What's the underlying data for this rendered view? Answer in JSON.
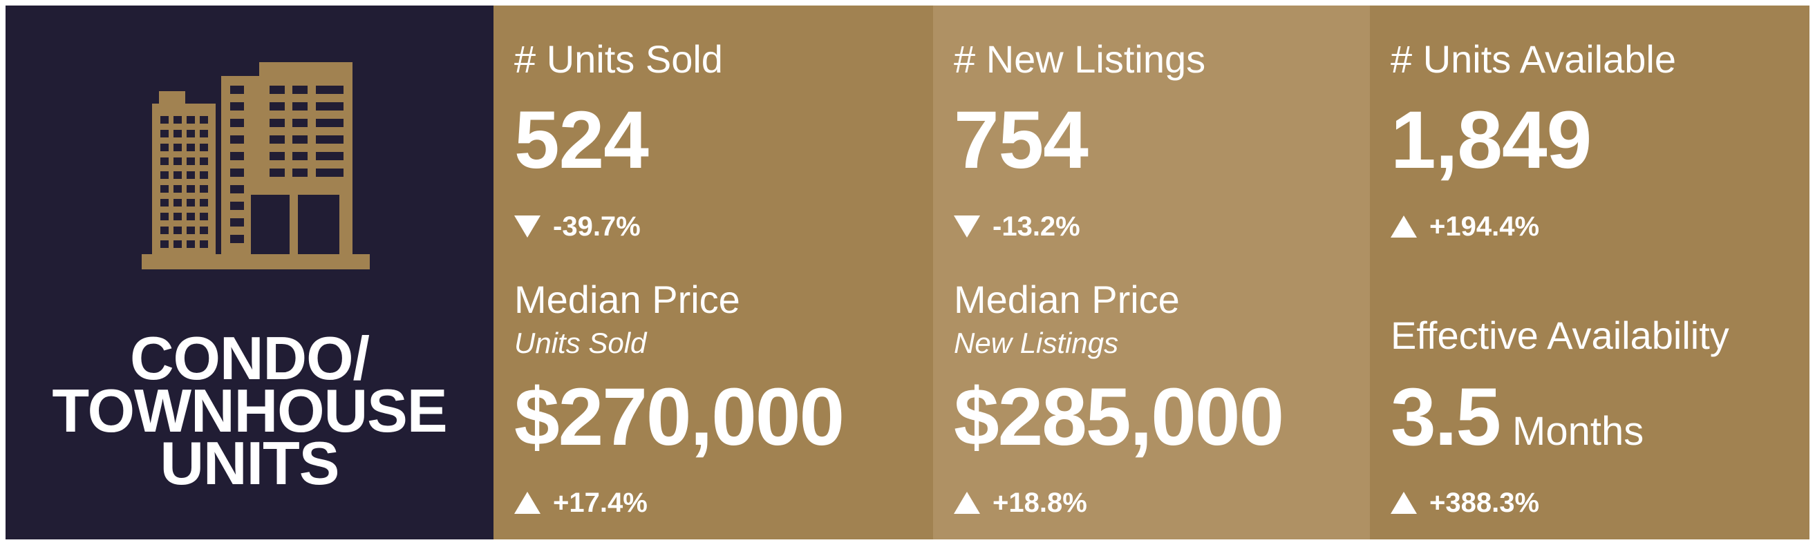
{
  "colors": {
    "navy_panel": "#211d34",
    "gold_panel": "#a18251",
    "gold_panel_light": "#af9164",
    "text": "#ffffff"
  },
  "category": {
    "icon": "building-icon",
    "line1": "CONDO/",
    "line2": "TOWNHOUSE",
    "line3": "UNITS"
  },
  "units_sold": {
    "label": "# Units Sold",
    "value": "524",
    "change": "-39.7%",
    "change_direction": "down",
    "median_label": "Median Price",
    "median_sublabel": "Units Sold",
    "median_value": "$270,000",
    "median_change": "+17.4%",
    "median_change_direction": "up"
  },
  "new_listings": {
    "label": "# New Listings",
    "value": "754",
    "change": "-13.2%",
    "change_direction": "down",
    "median_label": "Median Price",
    "median_sublabel": "New Listings",
    "median_value": "$285,000",
    "median_change": "+18.8%",
    "median_change_direction": "up"
  },
  "units_available": {
    "label": "# Units Available",
    "value": "1,849",
    "change": "+194.4%",
    "change_direction": "up",
    "availability_label": "Effective Availability",
    "availability_value": "3.5",
    "availability_unit": "Months",
    "availability_change": "+388.3%",
    "availability_change_direction": "up"
  }
}
